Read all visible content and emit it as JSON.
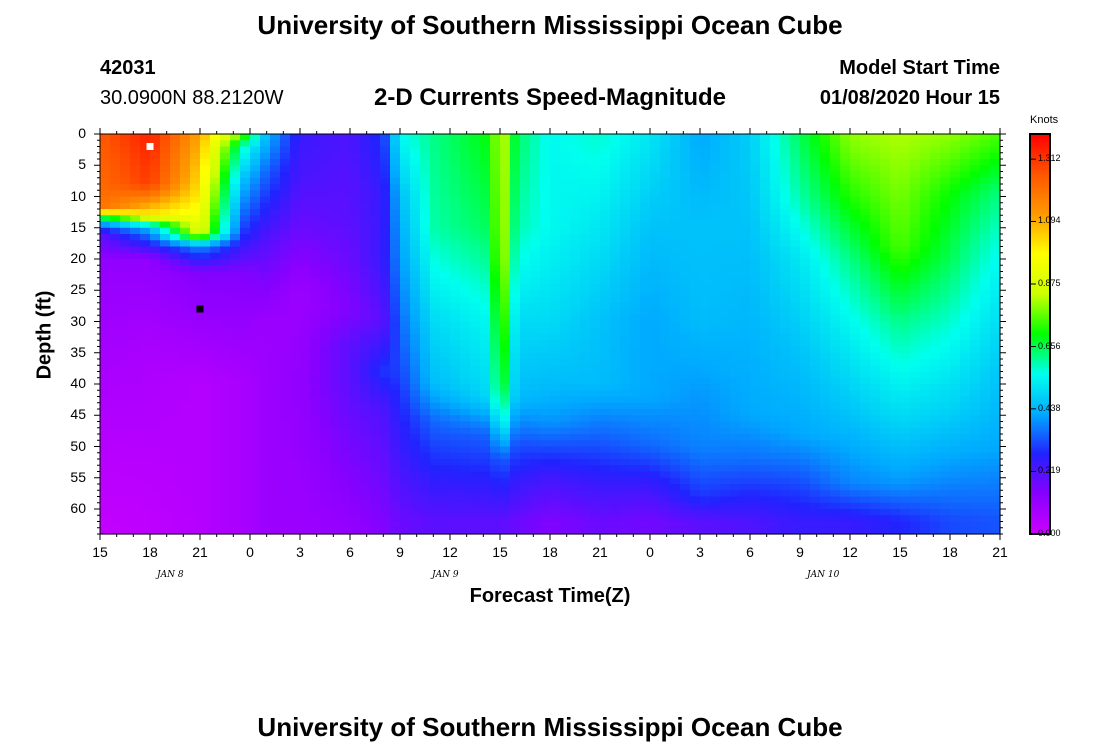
{
  "header": {
    "title": "University of Southern Mississippi Ocean Cube",
    "station_id": "42031",
    "coords": "30.0900N 88.2120W",
    "subtitle": "2-D Currents Speed-Magnitude",
    "model_start_label": "Model Start Time",
    "model_start_value": "01/08/2020 Hour 15"
  },
  "footer": {
    "title": "University of Southern Mississippi Ocean Cube"
  },
  "colors": {
    "scale": [
      "#cc00ff",
      "#8800ff",
      "#2222ff",
      "#00aaff",
      "#00ffee",
      "#00ff00",
      "#ccff00",
      "#ffff00",
      "#ff9900",
      "#ff5500",
      "#ff0000"
    ]
  },
  "chart_data": {
    "type": "heatmap",
    "title": "2-D Currents Speed-Magnitude",
    "xlabel": "Forecast Time(Z)",
    "ylabel": "Depth (ft)",
    "x_tick_labels": [
      "15",
      "18",
      "21",
      "0",
      "3",
      "6",
      "9",
      "12",
      "15",
      "18",
      "21",
      "0",
      "3",
      "6",
      "9",
      "12",
      "15",
      "18",
      "21"
    ],
    "x_hours_from_start": [
      0,
      3,
      6,
      9,
      12,
      15,
      18,
      21,
      24,
      27,
      30,
      33,
      36,
      39,
      42,
      45,
      48,
      51,
      54
    ],
    "x_range_hours": [
      0,
      54
    ],
    "date_labels": [
      {
        "text": "JAN 8",
        "hour": 4.5
      },
      {
        "text": "JAN 9",
        "hour": 21
      },
      {
        "text": "JAN 10",
        "hour": 43.5
      }
    ],
    "y_ticks": [
      "0",
      "5",
      "10",
      "15",
      "20",
      "25",
      "30",
      "35",
      "40",
      "45",
      "50",
      "55",
      "60"
    ],
    "y_range_ft": [
      0,
      64
    ],
    "colorbar": {
      "unit": "Knots",
      "ticks": [
        "1.312",
        "1.094",
        "0.875",
        "0.656",
        "0.438",
        "0.219",
        "0.000"
      ],
      "min": 0.0,
      "max": 1.4
    },
    "markers": [
      {
        "color": "#ffffff",
        "hour": 3,
        "depth": 2
      },
      {
        "color": "#000000",
        "hour": 6,
        "depth": 28
      }
    ],
    "profile_columns": [
      {
        "hour": 0,
        "depths": [
          0,
          12,
          14,
          16,
          20,
          35,
          62
        ],
        "speeds": [
          1.25,
          1.2,
          0.45,
          0.2,
          0.12,
          0.08,
          0.02
        ]
      },
      {
        "hour": 3,
        "depths": [
          0,
          8,
          13,
          15,
          20,
          35,
          62
        ],
        "speeds": [
          1.35,
          1.3,
          1.0,
          0.45,
          0.12,
          0.07,
          0.03
        ]
      },
      {
        "hour": 6,
        "depths": [
          0,
          10,
          16,
          18,
          22,
          40,
          62
        ],
        "speeds": [
          1.1,
          1.0,
          0.9,
          0.4,
          0.15,
          0.05,
          0.05
        ]
      },
      {
        "hour": 8.5,
        "depths": [
          0,
          2,
          8,
          16,
          22,
          40,
          62
        ],
        "speeds": [
          0.8,
          0.6,
          0.45,
          0.3,
          0.15,
          0.07,
          0.07
        ]
      },
      {
        "hour": 10,
        "depths": [
          0,
          6,
          10,
          18,
          30,
          62
        ],
        "speeds": [
          0.45,
          0.35,
          0.3,
          0.2,
          0.1,
          0.1
        ]
      },
      {
        "hour": 12,
        "depths": [
          0,
          8,
          15,
          25,
          40,
          62
        ],
        "speeds": [
          0.25,
          0.22,
          0.18,
          0.1,
          0.12,
          0.1
        ]
      },
      {
        "hour": 15,
        "depths": [
          0,
          15,
          28,
          34,
          40,
          62
        ],
        "speeds": [
          0.22,
          0.2,
          0.15,
          0.2,
          0.2,
          0.12
        ]
      },
      {
        "hour": 17,
        "depths": [
          0,
          10,
          20,
          30,
          38,
          44,
          62
        ],
        "speeds": [
          0.3,
          0.25,
          0.25,
          0.2,
          0.3,
          0.22,
          0.15
        ]
      },
      {
        "hour": 18,
        "depths": [
          0,
          10,
          20,
          30,
          40,
          50,
          62
        ],
        "speeds": [
          0.55,
          0.45,
          0.4,
          0.35,
          0.3,
          0.25,
          0.18
        ]
      },
      {
        "hour": 20,
        "depths": [
          0,
          15,
          30,
          40,
          46,
          62
        ],
        "speeds": [
          0.62,
          0.6,
          0.5,
          0.45,
          0.35,
          0.2
        ]
      },
      {
        "hour": 23.5,
        "depths": [
          0,
          15,
          30,
          42,
          48,
          62
        ],
        "speeds": [
          0.7,
          0.65,
          0.55,
          0.5,
          0.35,
          0.2
        ]
      },
      {
        "hour": 24,
        "depths": [
          0,
          20,
          30,
          40,
          46,
          52,
          62
        ],
        "speeds": [
          0.88,
          0.88,
          0.82,
          0.75,
          0.6,
          0.35,
          0.2
        ]
      },
      {
        "hour": 25,
        "depths": [
          0,
          15,
          30,
          42,
          50,
          62
        ],
        "speeds": [
          0.65,
          0.6,
          0.5,
          0.45,
          0.32,
          0.18
        ]
      },
      {
        "hour": 27,
        "depths": [
          0,
          15,
          30,
          40,
          46,
          54,
          62
        ],
        "speeds": [
          0.55,
          0.55,
          0.5,
          0.45,
          0.4,
          0.25,
          0.15
        ]
      },
      {
        "hour": 30,
        "depths": [
          0,
          15,
          30,
          40,
          48,
          56,
          62
        ],
        "speeds": [
          0.58,
          0.52,
          0.46,
          0.45,
          0.35,
          0.25,
          0.18
        ]
      },
      {
        "hour": 33,
        "depths": [
          0,
          15,
          30,
          42,
          50,
          58,
          62
        ],
        "speeds": [
          0.52,
          0.46,
          0.42,
          0.42,
          0.35,
          0.22,
          0.17
        ]
      },
      {
        "hour": 36,
        "depths": [
          0,
          15,
          30,
          42,
          50,
          58,
          62
        ],
        "speeds": [
          0.42,
          0.46,
          0.45,
          0.4,
          0.38,
          0.3,
          0.2
        ]
      },
      {
        "hour": 39,
        "depths": [
          0,
          15,
          30,
          45,
          52,
          58,
          62
        ],
        "speeds": [
          0.48,
          0.46,
          0.44,
          0.42,
          0.36,
          0.28,
          0.22
        ]
      },
      {
        "hour": 42,
        "depths": [
          0,
          10,
          20,
          35,
          48,
          56,
          62
        ],
        "speeds": [
          0.65,
          0.6,
          0.52,
          0.46,
          0.42,
          0.32,
          0.25
        ]
      },
      {
        "hour": 45,
        "depths": [
          0,
          10,
          20,
          30,
          45,
          56,
          62
        ],
        "speeds": [
          0.8,
          0.72,
          0.62,
          0.55,
          0.46,
          0.38,
          0.25
        ]
      },
      {
        "hour": 48,
        "depths": [
          0,
          10,
          18,
          30,
          45,
          56,
          62
        ],
        "speeds": [
          0.82,
          0.78,
          0.75,
          0.62,
          0.5,
          0.4,
          0.28
        ]
      },
      {
        "hour": 51,
        "depths": [
          0,
          10,
          20,
          30,
          45,
          56,
          62
        ],
        "speeds": [
          0.8,
          0.7,
          0.65,
          0.58,
          0.48,
          0.38,
          0.32
        ]
      },
      {
        "hour": 54,
        "depths": [
          0,
          10,
          20,
          35,
          50,
          62
        ],
        "speeds": [
          0.75,
          0.62,
          0.55,
          0.48,
          0.42,
          0.33
        ]
      }
    ]
  }
}
